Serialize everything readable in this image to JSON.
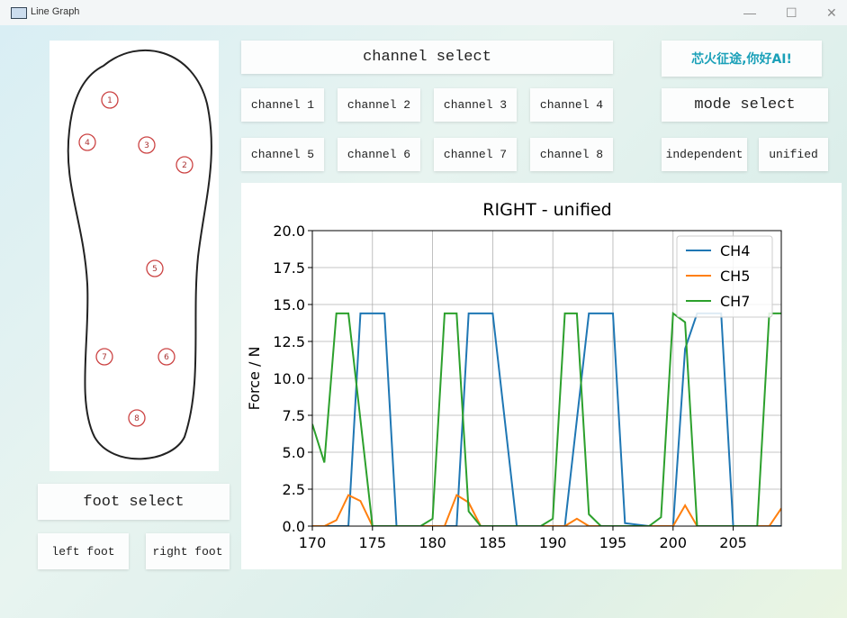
{
  "window": {
    "title": "Line Graph"
  },
  "buttons": {
    "channel_select": "channel select",
    "channels": [
      "channel 1",
      "channel 2",
      "channel 3",
      "channel 4",
      "channel 5",
      "channel 6",
      "channel 7",
      "channel 8"
    ],
    "mode_select": "mode select",
    "independent": "independent",
    "unified": "unified",
    "foot_select": "foot select",
    "left_foot": "left foot",
    "right_foot": "right foot"
  },
  "logo": "芯火征途,你好AI!",
  "sensors": [
    "1",
    "2",
    "3",
    "4",
    "5",
    "6",
    "7",
    "8"
  ],
  "chart_data": {
    "type": "line",
    "title": "RIGHT - unified",
    "y_label": "Force / N",
    "x": [
      170,
      171,
      172,
      173,
      174,
      175,
      176,
      177,
      178,
      179,
      180,
      181,
      182,
      183,
      184,
      185,
      186,
      187,
      188,
      189,
      190,
      191,
      192,
      193,
      194,
      195,
      196,
      197,
      198,
      199,
      200,
      201,
      202,
      203,
      204,
      205,
      206,
      207,
      208,
      209
    ],
    "series": [
      {
        "name": "CH4",
        "color": "#1f77b4",
        "values": [
          0,
          0,
          0,
          0,
          14.4,
          14.4,
          14.4,
          0,
          0,
          0,
          0,
          0,
          0,
          14.4,
          14.4,
          14.4,
          7.2,
          0,
          0,
          0,
          0,
          0,
          7.2,
          14.4,
          14.4,
          14.4,
          0.2,
          0.1,
          0,
          0,
          0,
          12,
          14.4,
          14.4,
          14.4,
          0,
          0,
          0,
          0,
          0
        ]
      },
      {
        "name": "CH5",
        "color": "#ff7f0e",
        "values": [
          0,
          0,
          0.4,
          2.1,
          1.7,
          0,
          0,
          0,
          0,
          0,
          0,
          0,
          2.1,
          1.6,
          0,
          0,
          0,
          0,
          0,
          0,
          0,
          0,
          0.5,
          0,
          0,
          0,
          0,
          0,
          0,
          0,
          0,
          1.4,
          0,
          0,
          0,
          0,
          0,
          0,
          0,
          1.2
        ]
      },
      {
        "name": "CH7",
        "color": "#2ca02c",
        "values": [
          6.9,
          4.3,
          14.4,
          14.4,
          7.2,
          0,
          0,
          0,
          0,
          0,
          0.5,
          14.4,
          14.4,
          1,
          0,
          0,
          0,
          0,
          0,
          0,
          0.5,
          14.4,
          14.4,
          0.8,
          0,
          0,
          0,
          0,
          0,
          0.6,
          14.4,
          13.8,
          0,
          0,
          0,
          0,
          0,
          0,
          14.4,
          14.4
        ]
      }
    ],
    "xlim": [
      170,
      209
    ],
    "ylim": [
      0,
      20
    ],
    "xticks": [
      170,
      175,
      180,
      185,
      190,
      195,
      200,
      205
    ],
    "yticks": [
      {
        "value": 0,
        "label": "0.0"
      },
      2.5,
      {
        "value": 5,
        "label": "5.0"
      },
      7.5,
      {
        "value": 10,
        "label": "10.0"
      },
      12.5,
      {
        "value": 15,
        "label": "15.0"
      },
      17.5,
      {
        "value": 20,
        "label": "20.0"
      }
    ],
    "grid": true,
    "legend": "upper right"
  }
}
